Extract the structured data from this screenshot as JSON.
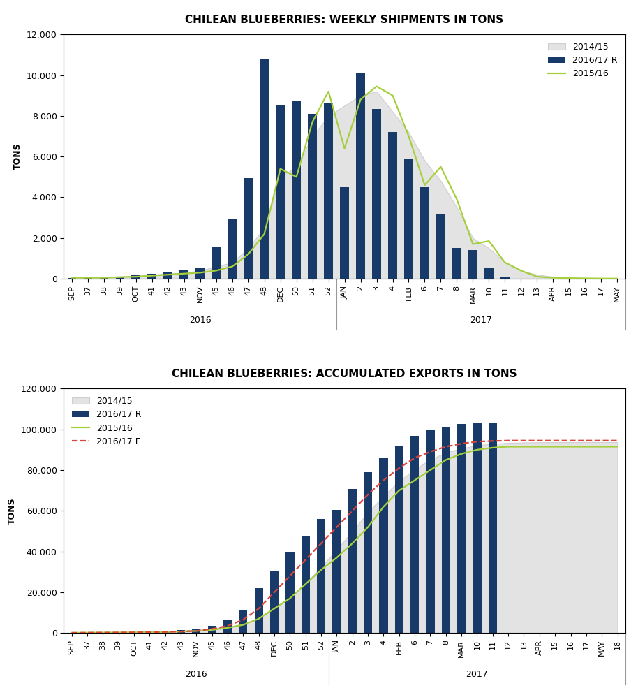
{
  "chart_data": [
    {
      "type": "bar",
      "title": "CHILEAN BLUEBERRIES: WEEKLY SHIPMENTS IN TONS",
      "y_label": "TONS",
      "categories": [
        "SEP",
        "37",
        "38",
        "39",
        "OCT",
        "41",
        "42",
        "43",
        "NOV",
        "45",
        "46",
        "47",
        "48",
        "DEC",
        "50",
        "51",
        "52",
        "JAN",
        "2",
        "3",
        "4",
        "FEB",
        "6",
        "7",
        "8",
        "MAR",
        "10",
        "11",
        "12",
        "13",
        "APR",
        "15",
        "16",
        "17",
        "MAY"
      ],
      "x_groups": [
        {
          "label": "2016",
          "first": "SEP",
          "last": "52"
        },
        {
          "label": "2017",
          "first": "JAN",
          "last": "MAY"
        }
      ],
      "series": [
        {
          "name": "2014/15",
          "type": "area",
          "color": "#e3e3e3",
          "values": [
            50,
            50,
            50,
            100,
            150,
            200,
            250,
            300,
            400,
            600,
            800,
            1500,
            2500,
            5000,
            5500,
            7000,
            8000,
            8500,
            9000,
            9200,
            8200,
            7200,
            5800,
            4800,
            3500,
            2000,
            1500,
            800,
            400,
            200,
            100,
            50,
            30,
            20,
            10
          ]
        },
        {
          "name": "2016/17 R",
          "type": "bar",
          "color": "#173a68",
          "values": [
            50,
            50,
            50,
            100,
            200,
            250,
            300,
            400,
            500,
            1550,
            2950,
            4950,
            10800,
            8550,
            8700,
            8100,
            8600,
            4500,
            10100,
            8350,
            7200,
            5900,
            4500,
            3200,
            1500,
            1400,
            500,
            80,
            null,
            null,
            null,
            null,
            null,
            null,
            null
          ]
        },
        {
          "name": "2015/16",
          "type": "line",
          "color": "#a6cf3c",
          "line_style": "solid",
          "values": [
            50,
            50,
            50,
            80,
            100,
            150,
            200,
            250,
            300,
            400,
            600,
            1200,
            2200,
            5400,
            5000,
            7700,
            9200,
            6400,
            8800,
            9450,
            9000,
            7000,
            4600,
            5500,
            3900,
            1700,
            1850,
            800,
            400,
            100,
            50,
            30,
            20,
            10,
            10
          ]
        }
      ],
      "ylim": [
        0,
        12000
      ],
      "yticks": [
        0,
        {
          "value": 2000,
          "label": "2.000"
        },
        {
          "value": 4000,
          "label": "4.000"
        },
        {
          "value": 6000,
          "label": "6.000"
        },
        {
          "value": 8000,
          "label": "8.000"
        },
        {
          "value": 10000,
          "label": "10.000"
        },
        {
          "value": 12000,
          "label": "12.000"
        }
      ],
      "grid": false,
      "legend": "upper right"
    },
    {
      "type": "bar",
      "title": "CHILEAN BLUEBERRIES: ACCUMULATED EXPORTS IN TONS",
      "y_label": "TONS",
      "categories": [
        "SEP",
        "37",
        "38",
        "39",
        "OCT",
        "41",
        "42",
        "43",
        "NOV",
        "45",
        "46",
        "47",
        "48",
        "DEC",
        "50",
        "51",
        "52",
        "JAN",
        "2",
        "3",
        "4",
        "FEB",
        "6",
        "7",
        "8",
        "MAR",
        "10",
        "11",
        "12",
        "13",
        "APR",
        "15",
        "16",
        "17",
        "MAY",
        "18"
      ],
      "x_groups": [
        {
          "label": "2016",
          "first": "SEP",
          "last": "52"
        },
        {
          "label": "2017",
          "first": "JAN",
          "last": "18"
        }
      ],
      "series": [
        {
          "name": "2014/15",
          "type": "area",
          "color": "#e3e3e3",
          "values": [
            50,
            100,
            150,
            250,
            400,
            600,
            850,
            1150,
            1550,
            2150,
            2950,
            4450,
            6950,
            11950,
            17450,
            24450,
            32450,
            40950,
            49950,
            59150,
            67350,
            74550,
            80350,
            85150,
            88650,
            90650,
            92150,
            92950,
            93350,
            93550,
            93650,
            93700,
            93730,
            93750,
            93760,
            93760
          ]
        },
        {
          "name": "2016/17 R",
          "type": "bar",
          "color": "#173a68",
          "values": [
            50,
            100,
            150,
            250,
            450,
            700,
            1000,
            1400,
            1900,
            3450,
            6400,
            11350,
            22150,
            30700,
            39400,
            47500,
            56100,
            60600,
            70700,
            79050,
            86250,
            92150,
            96650,
            99850,
            101350,
            102750,
            103250,
            103330,
            null,
            null,
            null,
            null,
            null,
            null,
            null,
            null
          ]
        },
        {
          "name": "2015/16",
          "type": "line",
          "color": "#a6cf3c",
          "line_style": "solid",
          "values": [
            100,
            150,
            200,
            250,
            300,
            400,
            500,
            700,
            1000,
            1500,
            2500,
            4000,
            7000,
            12000,
            17000,
            24000,
            31000,
            37000,
            44000,
            52000,
            62000,
            70000,
            75000,
            80000,
            85000,
            88000,
            90000,
            91000,
            91500,
            91500,
            91500,
            91500,
            91500,
            91500,
            91500,
            91500
          ]
        },
        {
          "name": "2016/17 E",
          "type": "line",
          "color": "#d9453d",
          "line_style": "dashed",
          "values": [
            100,
            150,
            200,
            250,
            300,
            400,
            500,
            700,
            1000,
            2000,
            3500,
            6500,
            12000,
            20000,
            28000,
            36000,
            44000,
            52000,
            60000,
            68000,
            75000,
            81000,
            86000,
            89000,
            91500,
            93000,
            94000,
            94300,
            94500,
            94500,
            94500,
            94500,
            94500,
            94500,
            94500,
            94500
          ]
        }
      ],
      "ylim": [
        0,
        120000
      ],
      "yticks": [
        0,
        {
          "value": 20000,
          "label": "20.000"
        },
        {
          "value": 40000,
          "label": "40.000"
        },
        {
          "value": 60000,
          "label": "60.000"
        },
        {
          "value": 80000,
          "label": "80.000"
        },
        {
          "value": 100000,
          "label": "100.000"
        },
        {
          "value": 120000,
          "label": "120.000"
        }
      ],
      "grid": false,
      "legend": "upper left"
    }
  ]
}
